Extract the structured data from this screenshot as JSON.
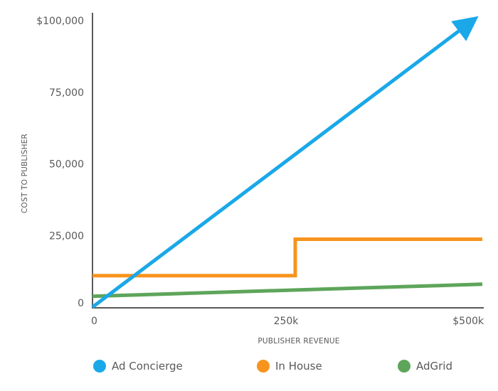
{
  "chart_data": {
    "type": "line",
    "title": "",
    "xlabel": "PUBLISHER REVENUE",
    "ylabel": "COST TO PUBLISHER",
    "xlim": [
      0,
      500000
    ],
    "ylim": [
      0,
      100000
    ],
    "x_ticks": [
      {
        "value": 0,
        "label": "0"
      },
      {
        "value": 250000,
        "label": "250k"
      },
      {
        "value": 500000,
        "label": "$500k"
      }
    ],
    "y_ticks": [
      {
        "value": 0,
        "label": "0"
      },
      {
        "value": 25000,
        "label": "25,000"
      },
      {
        "value": 50000,
        "label": "50,000"
      },
      {
        "value": 75000,
        "label": "75,000"
      },
      {
        "value": 100000,
        "label": "$100,000"
      }
    ],
    "grid": false,
    "legend_position": "bottom",
    "series": [
      {
        "name": "Ad Concierge",
        "color": "#1AA8E8",
        "arrow_end": true,
        "points": [
          [
            0,
            0
          ],
          [
            490000,
            100500
          ]
        ]
      },
      {
        "name": "In House",
        "color": "#F7941D",
        "step": true,
        "points": [
          [
            0,
            11000
          ],
          [
            260000,
            11000
          ],
          [
            260000,
            23700
          ],
          [
            500000,
            23700
          ]
        ]
      },
      {
        "name": "AdGrid",
        "color": "#5DA55A",
        "points": [
          [
            0,
            3800
          ],
          [
            500000,
            8000
          ]
        ]
      }
    ]
  },
  "colors": {
    "axis": "#58595b",
    "text": "#58595b"
  }
}
